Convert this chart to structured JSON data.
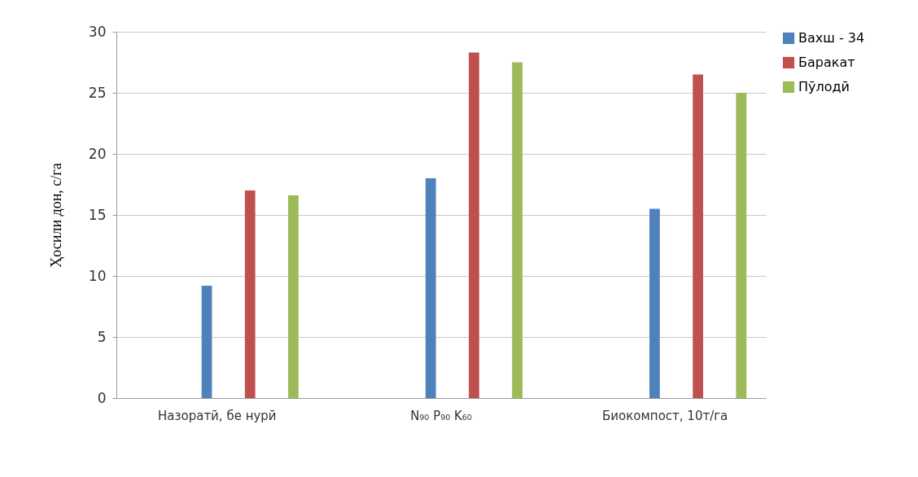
{
  "chart_data": {
    "type": "bar",
    "ylabel": "Ҳосили дон, с/га",
    "categories": [
      "Назоратӣ, бе нурӣ",
      "N₉₀ P₉₀ K₆₀",
      "Биокомпост, 10т/га"
    ],
    "series": [
      {
        "name": "Вахш - 34",
        "color": "#4f81bd",
        "values": [
          9.2,
          18.0,
          15.5
        ]
      },
      {
        "name": "Баракат",
        "color": "#c0504d",
        "values": [
          17.0,
          28.3,
          26.5
        ]
      },
      {
        "name": "Пӯлодӣ",
        "color": "#9bbb59",
        "values": [
          16.6,
          27.5,
          25.0
        ]
      }
    ],
    "ylim": [
      0,
      30
    ],
    "yticks": [
      0,
      5,
      10,
      15,
      20,
      25,
      30
    ],
    "grid": "y",
    "legend": "right"
  }
}
